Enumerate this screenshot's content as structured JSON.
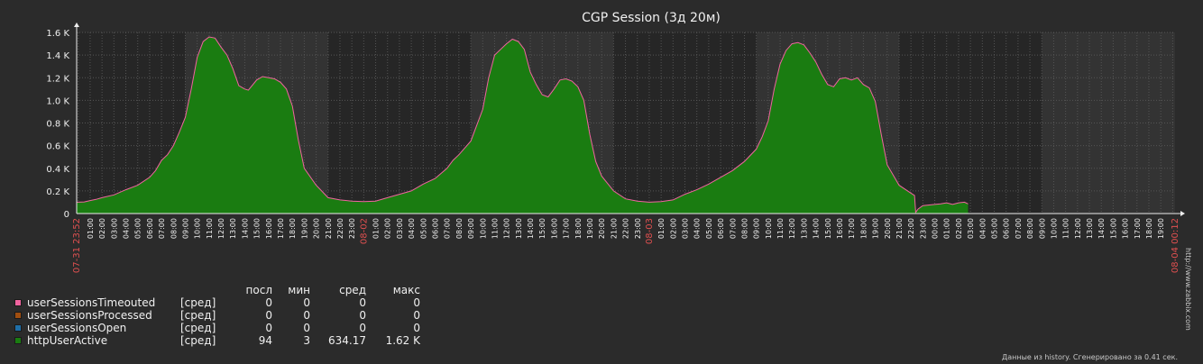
{
  "chart_data": {
    "type": "area",
    "title": "CGP Session (3д 20м)",
    "ylim": [
      0,
      1600
    ],
    "y_ticks": [
      "0",
      "0.2 K",
      "0.4 K",
      "0.6 K",
      "0.8 K",
      "1.0 K",
      "1.2 K",
      "1.4 K",
      "1.6 K"
    ],
    "x_range_hours": [
      -0.1333,
      92.2
    ],
    "start_label": "07-31 23:52",
    "end_label": "08-04 00:12",
    "day_labels": [
      {
        "hour": 24,
        "label": "08-02"
      },
      {
        "hour": 48,
        "label": "08-03"
      }
    ],
    "hour_labels": [
      "00:00",
      "01:00",
      "02:00",
      "03:00",
      "04:00",
      "05:00",
      "06:00",
      "07:00",
      "08:00",
      "09:00",
      "10:00",
      "11:00",
      "12:00",
      "13:00",
      "14:00",
      "15:00",
      "16:00",
      "17:00",
      "18:00",
      "19:00",
      "20:00",
      "21:00",
      "22:00",
      "23:00"
    ],
    "series": [
      {
        "name": "httpUserActive",
        "color": "#1a7c11",
        "line_color": "#f0649f",
        "points": [
          [
            -0.13,
            100
          ],
          [
            0,
            100
          ],
          [
            0.5,
            103
          ],
          [
            1,
            115
          ],
          [
            1.5,
            125
          ],
          [
            2,
            140
          ],
          [
            3,
            165
          ],
          [
            4,
            210
          ],
          [
            5,
            250
          ],
          [
            6,
            320
          ],
          [
            6.5,
            380
          ],
          [
            7,
            470
          ],
          [
            7.5,
            520
          ],
          [
            8,
            600
          ],
          [
            8.5,
            720
          ],
          [
            9,
            850
          ],
          [
            9.5,
            1100
          ],
          [
            10,
            1380
          ],
          [
            10.5,
            1520
          ],
          [
            11,
            1560
          ],
          [
            11.5,
            1550
          ],
          [
            12,
            1470
          ],
          [
            12.5,
            1400
          ],
          [
            13,
            1280
          ],
          [
            13.5,
            1130
          ],
          [
            14,
            1100
          ],
          [
            14.3,
            1090
          ],
          [
            15,
            1180
          ],
          [
            15.5,
            1210
          ],
          [
            16,
            1200
          ],
          [
            16.5,
            1190
          ],
          [
            17,
            1160
          ],
          [
            17.5,
            1100
          ],
          [
            18,
            950
          ],
          [
            18.5,
            650
          ],
          [
            19,
            400
          ],
          [
            20,
            250
          ],
          [
            21,
            140
          ],
          [
            22,
            120
          ],
          [
            23,
            110
          ],
          [
            24,
            105
          ],
          [
            25,
            110
          ],
          [
            26,
            140
          ],
          [
            27,
            170
          ],
          [
            28,
            200
          ],
          [
            29,
            260
          ],
          [
            30,
            310
          ],
          [
            31,
            400
          ],
          [
            31.5,
            470
          ],
          [
            32,
            520
          ],
          [
            33,
            640
          ],
          [
            34,
            920
          ],
          [
            34.5,
            1200
          ],
          [
            35,
            1400
          ],
          [
            35.5,
            1450
          ],
          [
            36,
            1500
          ],
          [
            36.5,
            1540
          ],
          [
            37,
            1520
          ],
          [
            37.5,
            1450
          ],
          [
            38,
            1250
          ],
          [
            38.5,
            1140
          ],
          [
            39,
            1050
          ],
          [
            39.5,
            1030
          ],
          [
            40,
            1100
          ],
          [
            40.5,
            1180
          ],
          [
            41,
            1190
          ],
          [
            41.5,
            1170
          ],
          [
            42,
            1120
          ],
          [
            42.5,
            1000
          ],
          [
            43,
            700
          ],
          [
            43.5,
            460
          ],
          [
            44,
            330
          ],
          [
            45,
            200
          ],
          [
            46,
            130
          ],
          [
            47,
            110
          ],
          [
            48,
            100
          ],
          [
            49,
            105
          ],
          [
            50,
            120
          ],
          [
            51,
            170
          ],
          [
            52,
            210
          ],
          [
            53,
            260
          ],
          [
            54,
            320
          ],
          [
            55,
            380
          ],
          [
            56,
            460
          ],
          [
            57,
            570
          ],
          [
            57.5,
            680
          ],
          [
            58,
            820
          ],
          [
            58.5,
            1100
          ],
          [
            59,
            1320
          ],
          [
            59.5,
            1440
          ],
          [
            60,
            1500
          ],
          [
            60.5,
            1510
          ],
          [
            61,
            1490
          ],
          [
            61.5,
            1420
          ],
          [
            62,
            1340
          ],
          [
            62.5,
            1230
          ],
          [
            63,
            1140
          ],
          [
            63.5,
            1120
          ],
          [
            64,
            1190
          ],
          [
            64.5,
            1200
          ],
          [
            65,
            1180
          ],
          [
            65.5,
            1200
          ],
          [
            66,
            1140
          ],
          [
            66.5,
            1110
          ],
          [
            67,
            990
          ],
          [
            67.5,
            700
          ],
          [
            68,
            430
          ],
          [
            69,
            250
          ],
          [
            70,
            180
          ],
          [
            70.3,
            160
          ],
          [
            70.4,
            10
          ],
          [
            70.6,
            40
          ],
          [
            71,
            70
          ],
          [
            72,
            80
          ],
          [
            72.5,
            85
          ],
          [
            73,
            95
          ],
          [
            73.5,
            80
          ],
          [
            74,
            95
          ],
          [
            74.5,
            100
          ],
          [
            74.8,
            85
          ]
        ]
      }
    ]
  },
  "legend": {
    "headers": {
      "last": "посл",
      "min": "мин",
      "avg": "сред",
      "max": "макс"
    },
    "items": [
      {
        "name": "userSessionsTimeouted",
        "func": "[сред]",
        "last": "0",
        "min": "0",
        "avg": "0",
        "max": "0",
        "color": "#f0649f"
      },
      {
        "name": "userSessionsProcessed",
        "func": "[сред]",
        "last": "0",
        "min": "0",
        "avg": "0",
        "max": "0",
        "color": "#a04e10"
      },
      {
        "name": "userSessionsOpen",
        "func": "[сред]",
        "last": "0",
        "min": "0",
        "avg": "0",
        "max": "0",
        "color": "#1f6fa8"
      },
      {
        "name": "httpUserActive",
        "func": "[сред]",
        "last": "94",
        "min": "3",
        "avg": "634.17",
        "max": "1.62 K",
        "color": "#1a7c11"
      }
    ]
  },
  "footer": "Данные из history. Сгенерировано за 0.41 сек.",
  "credit": "http://www.zabbix.com"
}
